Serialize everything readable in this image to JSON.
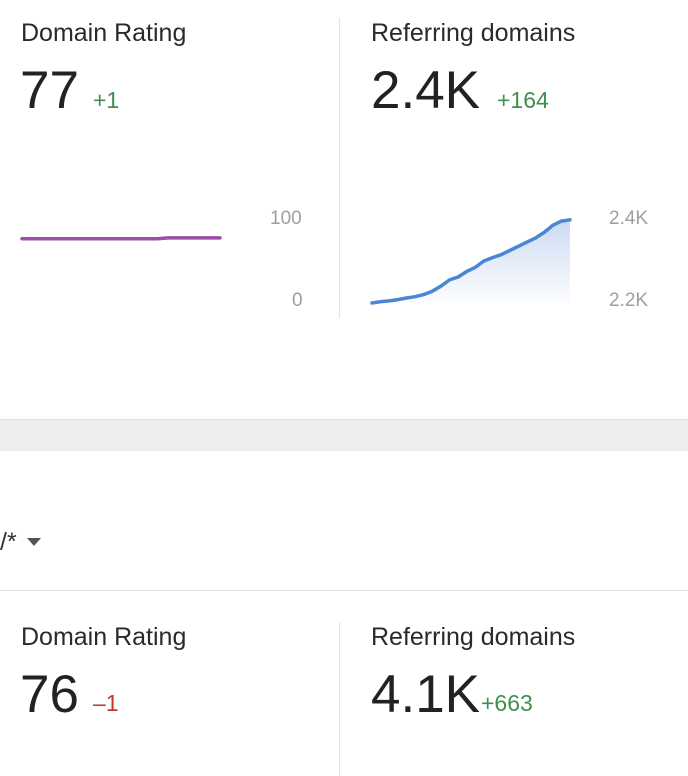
{
  "panel1": {
    "left_metric": {
      "label": "Domain Rating",
      "value": "77",
      "delta": "+1",
      "delta_color": "#3f8f4e"
    },
    "right_metric": {
      "label": "Referring domains",
      "value": "2.4K",
      "delta": "+164",
      "delta_color": "#3f8f4e"
    },
    "dr_axis": {
      "top": "100",
      "bottom": "0"
    },
    "rd_axis": {
      "top": "2.4K",
      "bottom": "2.2K"
    }
  },
  "filter": {
    "text": "/*",
    "icon": "caret-down-icon"
  },
  "panel2": {
    "left_metric": {
      "label": "Domain Rating",
      "value": "76",
      "delta": "–1",
      "delta_color": "#c0392b"
    },
    "right_metric": {
      "label": "Referring domains",
      "value": "4.1K",
      "delta": "+663",
      "delta_color": "#3f8f4e"
    }
  },
  "colors": {
    "dr_line": "#9b4fa6",
    "rd_line": "#4a86d4",
    "rd_fill": "#c9d9f2"
  },
  "chart_data": [
    {
      "type": "line",
      "title": "",
      "ylim": [
        0,
        100
      ],
      "y_ticks": [
        "100",
        "0"
      ],
      "series": [
        {
          "values": [
            76,
            76,
            76,
            76,
            76,
            76,
            76,
            76,
            76,
            76,
            76,
            76,
            76,
            76,
            77,
            77,
            77,
            77,
            77,
            77
          ]
        }
      ]
    },
    {
      "type": "area",
      "title": "",
      "ylim": [
        2200,
        2400
      ],
      "y_ticks": [
        "2.4K",
        "2.2K"
      ],
      "series": [
        {
          "values": [
            2200,
            2203,
            2205,
            2208,
            2212,
            2215,
            2220,
            2228,
            2240,
            2255,
            2262,
            2275,
            2285,
            2300,
            2308,
            2315,
            2325,
            2335,
            2345,
            2355,
            2368,
            2385,
            2395,
            2398
          ]
        }
      ]
    }
  ]
}
